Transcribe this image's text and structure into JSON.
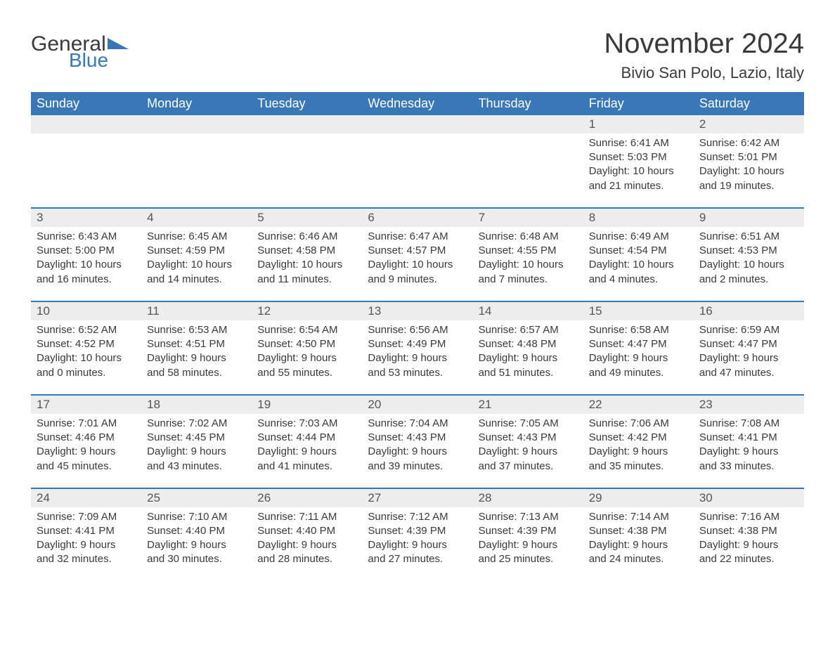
{
  "brand": {
    "general": "General",
    "blue": "Blue"
  },
  "title": "November 2024",
  "location": "Bivio San Polo, Lazio, Italy",
  "colors": {
    "header_bg": "#3a77b7",
    "header_fg": "#ffffff",
    "daybar_bg": "#ededed",
    "daybar_border": "#3a77b7",
    "text": "#3a3a3a",
    "page_bg": "#ffffff"
  },
  "weekday_headers": [
    "Sunday",
    "Monday",
    "Tuesday",
    "Wednesday",
    "Thursday",
    "Friday",
    "Saturday"
  ],
  "weeks": [
    [
      null,
      null,
      null,
      null,
      null,
      {
        "n": "1",
        "sunrise": "Sunrise: 6:41 AM",
        "sunset": "Sunset: 5:03 PM",
        "d1": "Daylight: 10 hours",
        "d2": "and 21 minutes."
      },
      {
        "n": "2",
        "sunrise": "Sunrise: 6:42 AM",
        "sunset": "Sunset: 5:01 PM",
        "d1": "Daylight: 10 hours",
        "d2": "and 19 minutes."
      }
    ],
    [
      {
        "n": "3",
        "sunrise": "Sunrise: 6:43 AM",
        "sunset": "Sunset: 5:00 PM",
        "d1": "Daylight: 10 hours",
        "d2": "and 16 minutes."
      },
      {
        "n": "4",
        "sunrise": "Sunrise: 6:45 AM",
        "sunset": "Sunset: 4:59 PM",
        "d1": "Daylight: 10 hours",
        "d2": "and 14 minutes."
      },
      {
        "n": "5",
        "sunrise": "Sunrise: 6:46 AM",
        "sunset": "Sunset: 4:58 PM",
        "d1": "Daylight: 10 hours",
        "d2": "and 11 minutes."
      },
      {
        "n": "6",
        "sunrise": "Sunrise: 6:47 AM",
        "sunset": "Sunset: 4:57 PM",
        "d1": "Daylight: 10 hours",
        "d2": "and 9 minutes."
      },
      {
        "n": "7",
        "sunrise": "Sunrise: 6:48 AM",
        "sunset": "Sunset: 4:55 PM",
        "d1": "Daylight: 10 hours",
        "d2": "and 7 minutes."
      },
      {
        "n": "8",
        "sunrise": "Sunrise: 6:49 AM",
        "sunset": "Sunset: 4:54 PM",
        "d1": "Daylight: 10 hours",
        "d2": "and 4 minutes."
      },
      {
        "n": "9",
        "sunrise": "Sunrise: 6:51 AM",
        "sunset": "Sunset: 4:53 PM",
        "d1": "Daylight: 10 hours",
        "d2": "and 2 minutes."
      }
    ],
    [
      {
        "n": "10",
        "sunrise": "Sunrise: 6:52 AM",
        "sunset": "Sunset: 4:52 PM",
        "d1": "Daylight: 10 hours",
        "d2": "and 0 minutes."
      },
      {
        "n": "11",
        "sunrise": "Sunrise: 6:53 AM",
        "sunset": "Sunset: 4:51 PM",
        "d1": "Daylight: 9 hours",
        "d2": "and 58 minutes."
      },
      {
        "n": "12",
        "sunrise": "Sunrise: 6:54 AM",
        "sunset": "Sunset: 4:50 PM",
        "d1": "Daylight: 9 hours",
        "d2": "and 55 minutes."
      },
      {
        "n": "13",
        "sunrise": "Sunrise: 6:56 AM",
        "sunset": "Sunset: 4:49 PM",
        "d1": "Daylight: 9 hours",
        "d2": "and 53 minutes."
      },
      {
        "n": "14",
        "sunrise": "Sunrise: 6:57 AM",
        "sunset": "Sunset: 4:48 PM",
        "d1": "Daylight: 9 hours",
        "d2": "and 51 minutes."
      },
      {
        "n": "15",
        "sunrise": "Sunrise: 6:58 AM",
        "sunset": "Sunset: 4:47 PM",
        "d1": "Daylight: 9 hours",
        "d2": "and 49 minutes."
      },
      {
        "n": "16",
        "sunrise": "Sunrise: 6:59 AM",
        "sunset": "Sunset: 4:47 PM",
        "d1": "Daylight: 9 hours",
        "d2": "and 47 minutes."
      }
    ],
    [
      {
        "n": "17",
        "sunrise": "Sunrise: 7:01 AM",
        "sunset": "Sunset: 4:46 PM",
        "d1": "Daylight: 9 hours",
        "d2": "and 45 minutes."
      },
      {
        "n": "18",
        "sunrise": "Sunrise: 7:02 AM",
        "sunset": "Sunset: 4:45 PM",
        "d1": "Daylight: 9 hours",
        "d2": "and 43 minutes."
      },
      {
        "n": "19",
        "sunrise": "Sunrise: 7:03 AM",
        "sunset": "Sunset: 4:44 PM",
        "d1": "Daylight: 9 hours",
        "d2": "and 41 minutes."
      },
      {
        "n": "20",
        "sunrise": "Sunrise: 7:04 AM",
        "sunset": "Sunset: 4:43 PM",
        "d1": "Daylight: 9 hours",
        "d2": "and 39 minutes."
      },
      {
        "n": "21",
        "sunrise": "Sunrise: 7:05 AM",
        "sunset": "Sunset: 4:43 PM",
        "d1": "Daylight: 9 hours",
        "d2": "and 37 minutes."
      },
      {
        "n": "22",
        "sunrise": "Sunrise: 7:06 AM",
        "sunset": "Sunset: 4:42 PM",
        "d1": "Daylight: 9 hours",
        "d2": "and 35 minutes."
      },
      {
        "n": "23",
        "sunrise": "Sunrise: 7:08 AM",
        "sunset": "Sunset: 4:41 PM",
        "d1": "Daylight: 9 hours",
        "d2": "and 33 minutes."
      }
    ],
    [
      {
        "n": "24",
        "sunrise": "Sunrise: 7:09 AM",
        "sunset": "Sunset: 4:41 PM",
        "d1": "Daylight: 9 hours",
        "d2": "and 32 minutes."
      },
      {
        "n": "25",
        "sunrise": "Sunrise: 7:10 AM",
        "sunset": "Sunset: 4:40 PM",
        "d1": "Daylight: 9 hours",
        "d2": "and 30 minutes."
      },
      {
        "n": "26",
        "sunrise": "Sunrise: 7:11 AM",
        "sunset": "Sunset: 4:40 PM",
        "d1": "Daylight: 9 hours",
        "d2": "and 28 minutes."
      },
      {
        "n": "27",
        "sunrise": "Sunrise: 7:12 AM",
        "sunset": "Sunset: 4:39 PM",
        "d1": "Daylight: 9 hours",
        "d2": "and 27 minutes."
      },
      {
        "n": "28",
        "sunrise": "Sunrise: 7:13 AM",
        "sunset": "Sunset: 4:39 PM",
        "d1": "Daylight: 9 hours",
        "d2": "and 25 minutes."
      },
      {
        "n": "29",
        "sunrise": "Sunrise: 7:14 AM",
        "sunset": "Sunset: 4:38 PM",
        "d1": "Daylight: 9 hours",
        "d2": "and 24 minutes."
      },
      {
        "n": "30",
        "sunrise": "Sunrise: 7:16 AM",
        "sunset": "Sunset: 4:38 PM",
        "d1": "Daylight: 9 hours",
        "d2": "and 22 minutes."
      }
    ]
  ]
}
